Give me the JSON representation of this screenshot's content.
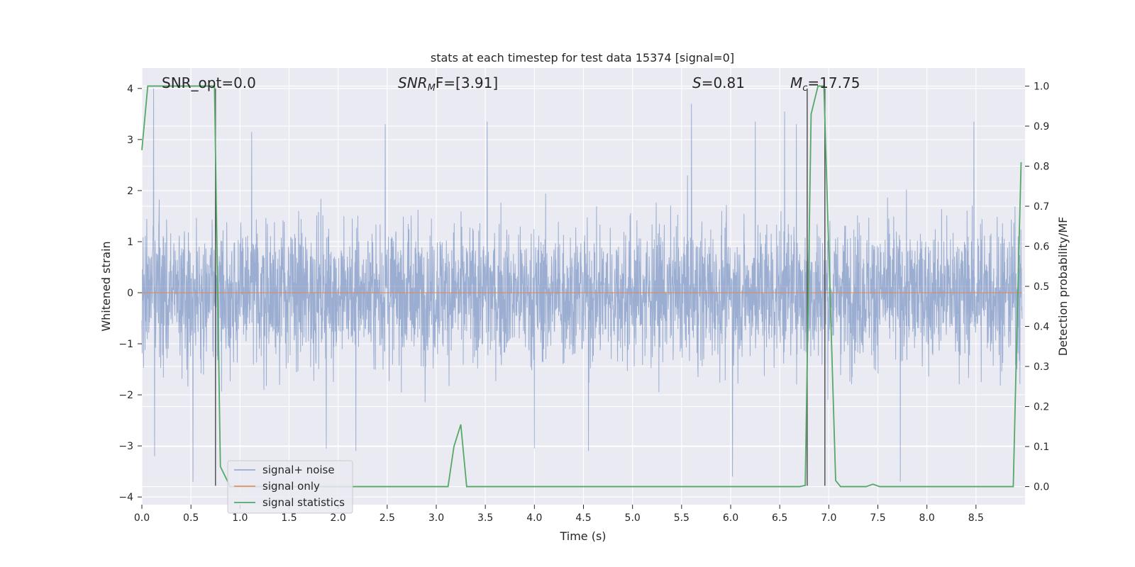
{
  "chart_data": {
    "type": "line",
    "title": "stats at each timestep for test data 15374 [signal=0]",
    "xlabel": "Time (s)",
    "ylabel": "Whitened strain",
    "y2label": "Detection probability/MF",
    "xlim": [
      0.0,
      9.0
    ],
    "ylim": [
      -4.15,
      4.4
    ],
    "y2lim": [
      -0.045,
      1.045
    ],
    "xticks": [
      "0.0",
      "0.5",
      "1.0",
      "1.5",
      "2.0",
      "2.5",
      "3.0",
      "3.5",
      "4.0",
      "4.5",
      "5.0",
      "5.5",
      "6.0",
      "6.5",
      "7.0",
      "7.5",
      "8.0",
      "8.5"
    ],
    "yticks": [
      "4",
      "3",
      "2",
      "1",
      "0",
      "−1",
      "−2",
      "−3",
      "−4"
    ],
    "y2ticks": [
      "1.0",
      "0.9",
      "0.8",
      "0.7",
      "0.6",
      "0.5",
      "0.4",
      "0.3",
      "0.2",
      "0.1",
      "0.0"
    ],
    "grid": true,
    "legend_position": "lower-left",
    "colors": {
      "noise": "#4c72b0",
      "signal": "#dd8452",
      "stats": "#55a868",
      "background": "#eaeaf2",
      "vline": "#555555"
    },
    "annotations": {
      "snr_opt": "SNR_opt=0.0",
      "snr_mf_label": "SNR",
      "snr_mf_sub": "M",
      "snr_mf_value": "F=[3.91]",
      "s_label": "S",
      "s_value": "=0.81",
      "mc_label": "M",
      "mc_sub": "c",
      "mc_value": "=17.75"
    },
    "series": [
      {
        "name": "signal+ noise",
        "noise_envelope": {
          "typical_range": [
            -2.0,
            2.3
          ],
          "max": 4.0,
          "min": -3.7
        },
        "notable_spikes": [
          {
            "t": 0.12,
            "v": 4.0
          },
          {
            "t": 0.13,
            "v": -3.2
          },
          {
            "t": 0.52,
            "v": -3.7
          },
          {
            "t": 1.12,
            "v": 3.15
          },
          {
            "t": 1.88,
            "v": -3.05
          },
          {
            "t": 2.18,
            "v": -3.1
          },
          {
            "t": 2.48,
            "v": 3.3
          },
          {
            "t": 3.52,
            "v": 3.35
          },
          {
            "t": 4.0,
            "v": -3.05
          },
          {
            "t": 4.55,
            "v": -3.1
          },
          {
            "t": 5.6,
            "v": 3.7
          },
          {
            "t": 6.02,
            "v": -3.6
          },
          {
            "t": 6.25,
            "v": 3.35
          },
          {
            "t": 6.55,
            "v": 3.55
          },
          {
            "t": 6.67,
            "v": 3.3
          },
          {
            "t": 7.73,
            "v": -3.7
          },
          {
            "t": 8.48,
            "v": 3.35
          }
        ]
      },
      {
        "name": "signal only",
        "constant": 0.0
      },
      {
        "name": "signal statistics",
        "axis": "right",
        "x": [
          0.0,
          0.06,
          0.1,
          0.2,
          0.4,
          0.6,
          0.74,
          0.8,
          0.9,
          1.0,
          2.0,
          2.2,
          3.12,
          3.18,
          3.25,
          3.31,
          4.0,
          5.0,
          6.0,
          6.7,
          6.76,
          6.82,
          6.89,
          6.95,
          7.07,
          7.12,
          7.2,
          7.38,
          7.45,
          7.52,
          8.0,
          8.5,
          8.88,
          8.92,
          8.96
        ],
        "values": [
          0.84,
          1.0,
          1.0,
          1.0,
          1.0,
          1.0,
          1.0,
          0.05,
          0.0,
          0.0,
          0.0,
          0.0,
          0.0,
          0.1,
          0.155,
          0.0,
          0.0,
          0.0,
          0.0,
          0.0,
          0.003,
          0.93,
          1.0,
          1.0,
          0.015,
          0.0,
          0.0,
          0.0,
          0.006,
          0.0,
          0.0,
          0.0,
          0.0,
          0.42,
          0.81
        ]
      }
    ],
    "vertical_lines": [
      {
        "x": 0.75,
        "from": -3.78,
        "to": 4.0
      },
      {
        "x": 6.78,
        "from": -3.78,
        "to": 4.0
      },
      {
        "x": 6.96,
        "from": -3.78,
        "to": 4.0
      }
    ]
  }
}
